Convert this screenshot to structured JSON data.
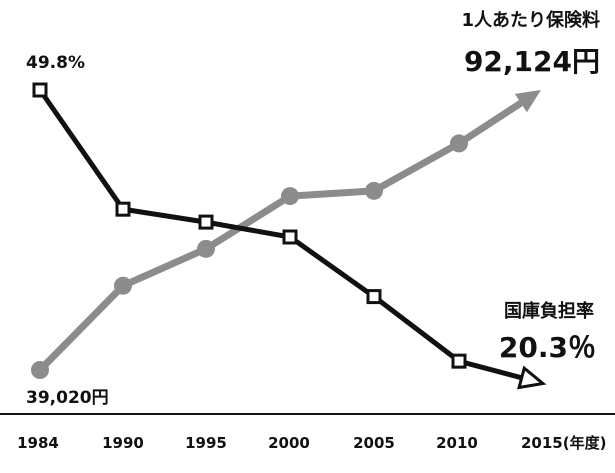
{
  "chart_data": {
    "type": "line",
    "x": [
      "1984",
      "1990",
      "1995",
      "2000",
      "2005",
      "2010",
      "2015"
    ],
    "x_unit_suffix": "(年度)",
    "series": [
      {
        "name": "1人あたり保険料",
        "color": "#8c8c8c",
        "values": [
          39020,
          55000,
          62000,
          72000,
          73000,
          82000,
          92124
        ],
        "start_label": "39,020円",
        "end_label": "92,124円"
      },
      {
        "name": "国庫負担率",
        "color": "#111111",
        "values": [
          49.8,
          37.8,
          36.5,
          35.0,
          29.0,
          22.5,
          20.3
        ],
        "start_label": "49.8%",
        "end_label": "20.3％"
      }
    ]
  }
}
